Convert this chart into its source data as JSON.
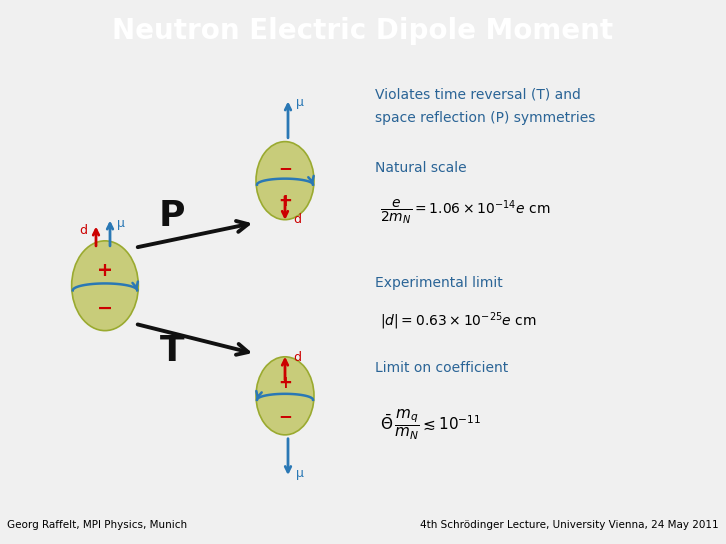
{
  "title": "Neutron Electric Dipole Moment",
  "title_bg_color": "#6d6d6d",
  "title_text_color": "#ffffff",
  "slide_bg_color": "#f0f0f0",
  "text_color_blue": "#2a6496",
  "text_color_black": "#000000",
  "text_color_red": "#cc0000",
  "footer_left": "Georg Raffelt, MPI Physics, Munich",
  "footer_right": "4th Schrödinger Lecture, University Vienna, 24 May 2011",
  "label_violates_1": "Violates time reversal (T) and",
  "label_violates_2": "space reflection (P) symmetries",
  "label_natural": "Natural scale",
  "label_exp": "Experimental limit",
  "label_limit": "Limit on coefficient",
  "title_fontsize": 20,
  "body_fontsize": 10,
  "footer_fontsize": 7.5,
  "neutron_color": "#c8cc7a",
  "neutron_edge_color": "#9aaa30",
  "arrow_blue": "#2a78b5",
  "arrow_red": "#cc0000",
  "arrow_black": "#111111",
  "footer_bg_color": "#c8c8c8"
}
